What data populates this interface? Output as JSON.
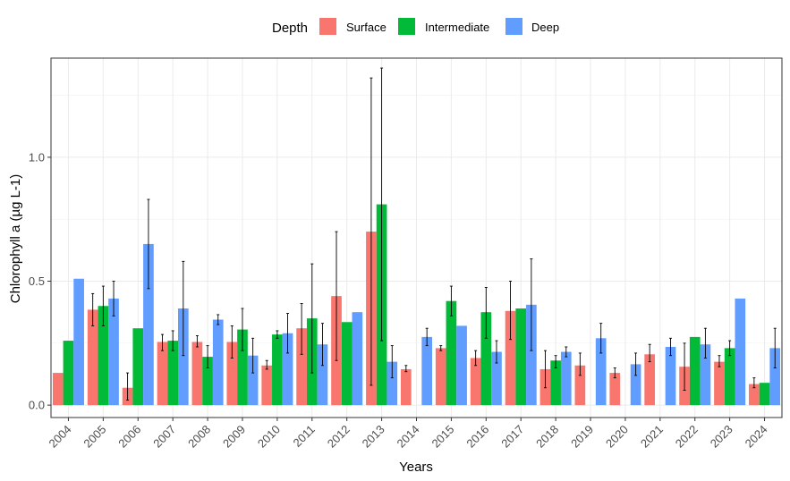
{
  "chart_data": {
    "type": "bar",
    "title": "",
    "xlabel": "Years",
    "ylabel": "Chlorophyll a (µg L-1)",
    "ylim": [
      -0.05,
      1.4
    ],
    "yticks": [
      0.0,
      0.5,
      1.0
    ],
    "ytick_labels": [
      "0.0",
      "0.5",
      "1.0"
    ],
    "grid": true,
    "legend": {
      "title": "Depth",
      "position": "top"
    },
    "categories": [
      "2004",
      "2005",
      "2006",
      "2007",
      "2008",
      "2009",
      "2010",
      "2011",
      "2012",
      "2013",
      "2014",
      "2015",
      "2016",
      "2017",
      "2018",
      "2019",
      "2020",
      "2021",
      "2022",
      "2023",
      "2024"
    ],
    "series": [
      {
        "name": "Surface",
        "color": "#F8766D",
        "values": [
          0.13,
          0.385,
          0.07,
          0.255,
          0.255,
          0.255,
          0.16,
          0.31,
          0.44,
          0.7,
          0.145,
          0.23,
          0.19,
          0.38,
          0.145,
          0.16,
          0.13,
          0.205,
          0.155,
          0.175,
          0.085
        ],
        "err_low": [
          null,
          0.32,
          0.02,
          0.22,
          0.235,
          0.19,
          0.145,
          0.205,
          0.18,
          0.08,
          0.135,
          0.22,
          0.16,
          0.265,
          0.07,
          0.12,
          0.11,
          0.175,
          0.06,
          0.155,
          0.07
        ],
        "err_high": [
          null,
          0.45,
          0.13,
          0.285,
          0.28,
          0.32,
          0.18,
          0.41,
          0.7,
          1.32,
          0.16,
          0.24,
          0.22,
          0.5,
          0.22,
          0.21,
          0.15,
          0.245,
          0.25,
          0.2,
          0.11
        ]
      },
      {
        "name": "Intermediate",
        "color": "#00BA38",
        "values": [
          0.26,
          0.4,
          0.31,
          0.26,
          0.195,
          0.305,
          0.285,
          0.35,
          0.335,
          0.81,
          null,
          0.42,
          0.375,
          0.39,
          0.18,
          null,
          null,
          null,
          0.275,
          0.23,
          0.09
        ],
        "err_low": [
          null,
          0.32,
          null,
          0.22,
          0.15,
          0.22,
          0.27,
          0.13,
          null,
          0.26,
          null,
          0.36,
          0.27,
          null,
          0.15,
          null,
          null,
          null,
          null,
          0.2,
          null
        ],
        "err_high": [
          null,
          0.48,
          null,
          0.3,
          0.24,
          0.39,
          0.3,
          0.57,
          null,
          1.36,
          null,
          0.48,
          0.475,
          null,
          0.2,
          null,
          null,
          null,
          null,
          0.26,
          null
        ]
      },
      {
        "name": "Deep",
        "color": "#619CFF",
        "values": [
          0.51,
          0.43,
          0.65,
          0.39,
          0.345,
          0.2,
          0.29,
          0.245,
          0.375,
          0.175,
          0.275,
          0.32,
          0.215,
          0.405,
          0.215,
          0.27,
          0.165,
          0.235,
          0.245,
          0.43,
          0.23
        ],
        "err_low": [
          null,
          0.36,
          0.47,
          0.2,
          0.325,
          0.13,
          0.21,
          0.16,
          null,
          0.11,
          0.24,
          null,
          0.17,
          0.22,
          0.195,
          0.21,
          0.12,
          0.2,
          0.19,
          null,
          0.15
        ],
        "err_high": [
          null,
          0.5,
          0.83,
          0.58,
          0.365,
          0.27,
          0.37,
          0.33,
          null,
          0.24,
          0.31,
          null,
          0.26,
          0.59,
          0.235,
          0.33,
          0.21,
          0.27,
          0.31,
          null,
          0.31
        ]
      }
    ]
  }
}
